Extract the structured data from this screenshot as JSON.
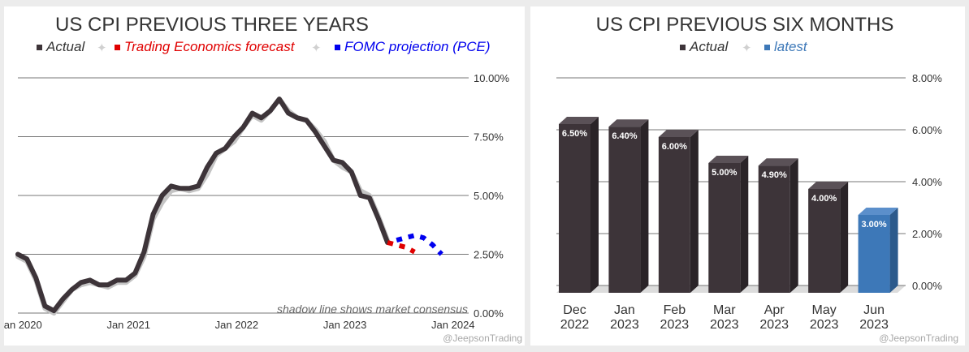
{
  "colors": {
    "actual": "#3d3439",
    "shadow": "#c4c4c4",
    "forecast": "#e00000",
    "fomc": "#0000ee",
    "latest": "#3d78b8",
    "grid": "#777777"
  },
  "chart_data": [
    {
      "type": "line",
      "title": "US CPI PREVIOUS THREE YEARS",
      "legend": [
        {
          "label": "Actual",
          "color_key": "actual"
        },
        {
          "label": "Trading Economics forecast",
          "color_key": "forecast"
        },
        {
          "label": "FOMC projection (PCE)",
          "color_key": "fomc"
        }
      ],
      "y_ticks": [
        "10.00%",
        "7.50%",
        "5.00%",
        "2.50%",
        "0.00%"
      ],
      "y_tick_values": [
        10,
        7.5,
        5,
        2.5,
        0
      ],
      "ylim": [
        0,
        10
      ],
      "x_ticks": [
        "Jan 2020",
        "Jan 2021",
        "Jan 2022",
        "Jan 2023",
        "Jan 2024"
      ],
      "x_tick_values": [
        0,
        12,
        24,
        36,
        48
      ],
      "xlim": [
        0,
        50
      ],
      "note": "shadow line shows market consensus",
      "watermark": "@JeepsonTrading",
      "series": [
        {
          "name": "Actual",
          "x": [
            0,
            1,
            2,
            3,
            4,
            5,
            6,
            7,
            8,
            9,
            10,
            11,
            12,
            13,
            14,
            15,
            16,
            17,
            18,
            19,
            20,
            21,
            22,
            23,
            24,
            25,
            26,
            27,
            28,
            29,
            30,
            31,
            32,
            33,
            34,
            35,
            36,
            37,
            38,
            39,
            40,
            41
          ],
          "values": [
            2.5,
            2.3,
            1.5,
            0.3,
            0.1,
            0.6,
            1.0,
            1.3,
            1.4,
            1.2,
            1.2,
            1.4,
            1.4,
            1.7,
            2.6,
            4.2,
            5.0,
            5.4,
            5.3,
            5.3,
            5.4,
            6.2,
            6.8,
            7.0,
            7.5,
            7.9,
            8.5,
            8.3,
            8.6,
            9.1,
            8.5,
            8.3,
            8.2,
            7.7,
            7.1,
            6.5,
            6.4,
            6.0,
            5.0,
            4.9,
            4.0,
            3.0
          ]
        },
        {
          "name": "Market consensus",
          "x": [
            0,
            1,
            2,
            3,
            4,
            5,
            6,
            7,
            8,
            9,
            10,
            11,
            12,
            13,
            14,
            15,
            16,
            17,
            18,
            19,
            20,
            21,
            22,
            23,
            24,
            25,
            26,
            27,
            28,
            29,
            30,
            31,
            32,
            33,
            34,
            35,
            36,
            37,
            38,
            39,
            40,
            41
          ],
          "values": [
            2.4,
            2.2,
            1.4,
            0.2,
            0.0,
            0.5,
            1.0,
            1.2,
            1.3,
            1.2,
            1.1,
            1.3,
            1.3,
            1.6,
            2.4,
            4.0,
            4.7,
            5.2,
            5.3,
            5.2,
            5.3,
            5.9,
            6.7,
            7.0,
            7.3,
            7.9,
            8.4,
            8.2,
            8.6,
            9.1,
            8.6,
            8.3,
            8.2,
            7.8,
            7.3,
            6.5,
            6.2,
            6.0,
            5.2,
            5.0,
            4.1,
            3.1
          ]
        },
        {
          "name": "Trading Economics forecast",
          "x": [
            41,
            42,
            43,
            44
          ],
          "values": [
            3.0,
            2.9,
            2.8,
            2.6
          ]
        },
        {
          "name": "FOMC projection (PCE)",
          "x": [
            42,
            43,
            44,
            45,
            46,
            47
          ],
          "values": [
            3.1,
            3.2,
            3.3,
            3.2,
            2.9,
            2.5
          ]
        }
      ]
    },
    {
      "type": "bar",
      "title": "US CPI PREVIOUS SIX MONTHS",
      "legend": [
        {
          "label": "Actual",
          "color_key": "actual"
        },
        {
          "label": "latest",
          "color_key": "latest"
        }
      ],
      "categories": [
        [
          "Dec",
          "2022"
        ],
        [
          "Jan",
          "2023"
        ],
        [
          "Feb",
          "2023"
        ],
        [
          "Mar",
          "2023"
        ],
        [
          "Apr",
          "2023"
        ],
        [
          "May",
          "2023"
        ],
        [
          "Jun",
          "2023"
        ]
      ],
      "values": [
        6.5,
        6.4,
        6.0,
        5.0,
        4.9,
        4.0,
        3.0
      ],
      "data_labels": [
        "6.50%",
        "6.40%",
        "6.00%",
        "5.00%",
        "4.90%",
        "4.00%",
        "3.00%"
      ],
      "latest_index": 6,
      "y_ticks": [
        "8.00%",
        "6.00%",
        "4.00%",
        "2.00%",
        "0.00%"
      ],
      "y_tick_values": [
        8,
        6,
        4,
        2,
        0
      ],
      "ylim": [
        0,
        8
      ],
      "watermark": "@JeepsonTrading"
    }
  ]
}
